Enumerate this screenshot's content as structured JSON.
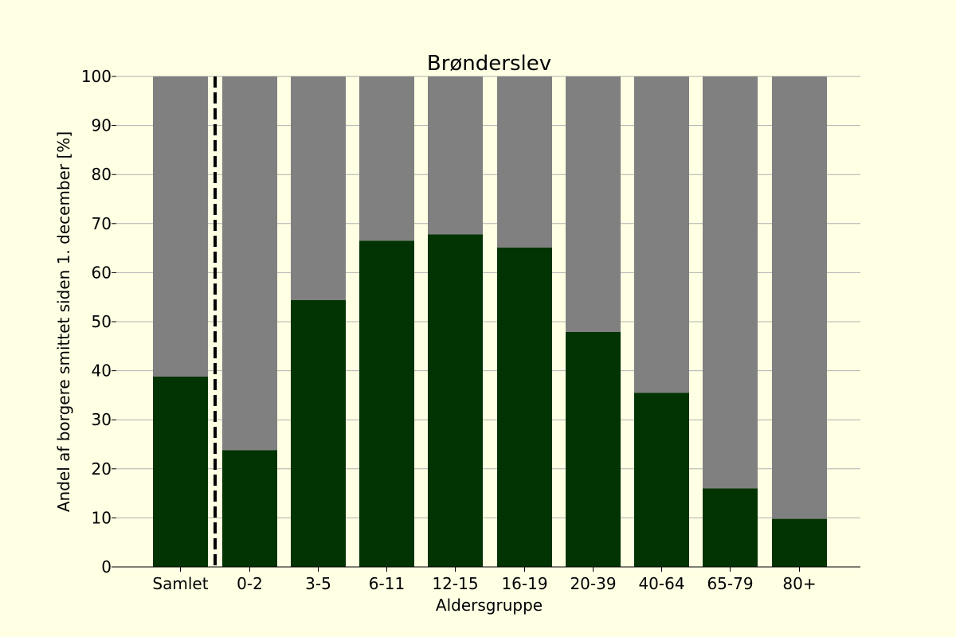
{
  "chart_data": {
    "type": "bar",
    "title": "Brønderslev",
    "xlabel": "Aldersgruppe",
    "ylabel": "Andel af borgere smittet siden 1. december [%]",
    "categories": [
      "Samlet",
      "0-2",
      "3-5",
      "6-11",
      "12-15",
      "16-19",
      "20-39",
      "40-64",
      "65-79",
      "80+"
    ],
    "series": [
      {
        "values": [
          38.8,
          23.8,
          54.4,
          66.5,
          67.8,
          65.1,
          47.9,
          35.5,
          16.0,
          9.8
        ]
      },
      {
        "values": [
          61.2,
          76.2,
          45.6,
          33.5,
          32.2,
          34.9,
          52.1,
          64.5,
          84.0,
          90.2
        ]
      }
    ],
    "stacked": true,
    "ylim": [
      0,
      100
    ],
    "yticks": [
      0,
      10,
      20,
      30,
      40,
      50,
      60,
      70,
      80,
      90,
      100
    ],
    "grid": "horizontal",
    "separator_after_category": "Samlet",
    "colors": {
      "infected": "#023302",
      "remaining": "#808080",
      "grid": "#b0b0b0",
      "background": "#ffffe4",
      "separator": "#000000"
    }
  }
}
